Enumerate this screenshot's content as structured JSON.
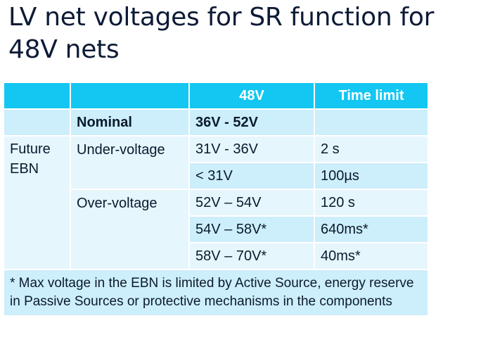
{
  "title": "LV net voltages for SR function for 48V nets",
  "table": {
    "headers": [
      "",
      "",
      "48V",
      "Time limit"
    ],
    "nominal": {
      "label": "Nominal",
      "range": "36V - 52V",
      "time": ""
    },
    "group_label": "Future EBN",
    "under_voltage": {
      "label": "Under-voltage",
      "rows": [
        {
          "range": "31V - 36V",
          "time": "2 s"
        },
        {
          "range": "< 31V",
          "time": "100µs"
        }
      ]
    },
    "over_voltage": {
      "label": "Over-voltage",
      "rows": [
        {
          "range": "52V – 54V",
          "time": "120 s"
        },
        {
          "range": "54V – 58V*",
          "time": "640ms*"
        },
        {
          "range": "58V – 70V*",
          "time": "40ms*"
        }
      ]
    },
    "footnote": "* Max voltage in the EBN is limited by Active Source, energy reserve in Passive Sources or protective mechanisms in the components"
  }
}
